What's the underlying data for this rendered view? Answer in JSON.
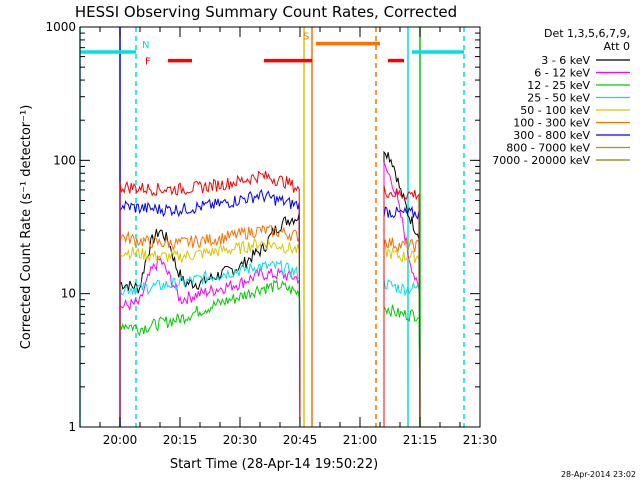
{
  "chart_data": {
    "type": "line",
    "title": "HESSI Observing Summary Count Rates, Corrected",
    "xlabel": "Start Time (28-Apr-14 19:50:22)",
    "ylabel": "Corrected Count Rate (s⁻¹ detector⁻¹)",
    "x_scale": "time",
    "y_scale": "log",
    "xlim": [
      "19:50",
      "21:30"
    ],
    "ylim": [
      1,
      1000
    ],
    "x_ticks": [
      "20:00",
      "20:15",
      "20:30",
      "20:45",
      "21:00",
      "21:15",
      "21:30"
    ],
    "y_ticks": [
      {
        "value": 1,
        "label": "1"
      },
      {
        "value": 10,
        "label": "10"
      },
      {
        "value": 100,
        "label": "100"
      },
      {
        "value": 1000,
        "label": "1000"
      }
    ],
    "legend_title": "Det 1,3,5,6,7,9,",
    "legend_subtitle": "Att 0",
    "legend_position": "right",
    "timestamp": "28-Apr-2014 23:02",
    "series": [
      {
        "name": "3 - 6 keV",
        "color": "#000000",
        "segments": [
          [
            [
              "20:00",
              12
            ],
            [
              "20:05",
              11
            ],
            [
              "20:08",
              25
            ],
            [
              "20:10",
              30
            ],
            [
              "20:12",
              25
            ],
            [
              "20:14",
              16
            ],
            [
              "20:16",
              12
            ],
            [
              "20:20",
              12
            ],
            [
              "20:25",
              14
            ],
            [
              "20:30",
              16
            ],
            [
              "20:33",
              19
            ],
            [
              "20:36",
              22
            ],
            [
              "20:38",
              28
            ],
            [
              "20:40",
              33
            ],
            [
              "20:42",
              36
            ],
            [
              "20:45",
              38
            ]
          ],
          [
            [
              "21:06",
              125
            ],
            [
              "21:08",
              100
            ],
            [
              "21:10",
              60
            ],
            [
              "21:12",
              40
            ],
            [
              "21:14",
              30
            ],
            [
              "21:15",
              28
            ]
          ]
        ]
      },
      {
        "name": "6 - 12 keV",
        "color": "#ff00ff",
        "segments": [
          [
            [
              "20:00",
              8
            ],
            [
              "20:05",
              8.5
            ],
            [
              "20:08",
              15
            ],
            [
              "20:10",
              18
            ],
            [
              "20:12",
              14
            ],
            [
              "20:15",
              9
            ],
            [
              "20:20",
              10
            ],
            [
              "20:25",
              11
            ],
            [
              "20:30",
              12
            ],
            [
              "20:35",
              14
            ],
            [
              "20:40",
              14
            ],
            [
              "20:45",
              13
            ]
          ],
          [
            [
              "21:06",
              90
            ],
            [
              "21:08",
              70
            ],
            [
              "21:10",
              40
            ],
            [
              "21:12",
              20
            ],
            [
              "21:14",
              12
            ],
            [
              "21:15",
              10
            ]
          ]
        ]
      },
      {
        "name": "12 - 25 keV",
        "color": "#00cc00",
        "segments": [
          [
            [
              "20:00",
              6
            ],
            [
              "20:05",
              5.5
            ],
            [
              "20:10",
              6
            ],
            [
              "20:15",
              6.5
            ],
            [
              "20:20",
              7.5
            ],
            [
              "20:25",
              8.5
            ],
            [
              "20:30",
              9.5
            ],
            [
              "20:35",
              11
            ],
            [
              "20:40",
              11.5
            ],
            [
              "20:45",
              10
            ]
          ],
          [
            [
              "21:06",
              8
            ],
            [
              "21:08",
              7.5
            ],
            [
              "21:10",
              7
            ],
            [
              "21:12",
              7
            ],
            [
              "21:15",
              7
            ]
          ]
        ]
      },
      {
        "name": "25 - 50 keV",
        "color": "#00e0e0",
        "segments": [
          [
            [
              "20:00",
              11
            ],
            [
              "20:05",
              11
            ],
            [
              "20:10",
              11.5
            ],
            [
              "20:15",
              12
            ],
            [
              "20:20",
              13
            ],
            [
              "20:25",
              14
            ],
            [
              "20:30",
              15
            ],
            [
              "20:35",
              16
            ],
            [
              "20:40",
              16
            ],
            [
              "20:45",
              14
            ]
          ],
          [
            [
              "21:06",
              12
            ],
            [
              "21:08",
              11.5
            ],
            [
              "21:10",
              11
            ],
            [
              "21:12",
              11
            ],
            [
              "21:15",
              11
            ]
          ]
        ]
      },
      {
        "name": "50 - 100 keV",
        "color": "#d8c800",
        "segments": [
          [
            [
              "20:00",
              21
            ],
            [
              "20:05",
              20
            ],
            [
              "20:10",
              19
            ],
            [
              "20:15",
              19
            ],
            [
              "20:20",
              20
            ],
            [
              "20:25",
              21
            ],
            [
              "20:30",
              22
            ],
            [
              "20:35",
              24
            ],
            [
              "20:40",
              23
            ],
            [
              "20:45",
              21
            ]
          ],
          [
            [
              "21:06",
              21
            ],
            [
              "21:08",
              20
            ],
            [
              "21:10",
              19
            ],
            [
              "21:12",
              19
            ],
            [
              "21:15",
              19
            ]
          ]
        ]
      },
      {
        "name": "100 - 300 keV",
        "color": "#ff7000",
        "segments": [
          [
            [
              "20:00",
              27
            ],
            [
              "20:05",
              25
            ],
            [
              "20:10",
              24
            ],
            [
              "20:15",
              24
            ],
            [
              "20:20",
              25
            ],
            [
              "20:25",
              26
            ],
            [
              "20:30",
              28
            ],
            [
              "20:35",
              30
            ],
            [
              "20:40",
              29
            ],
            [
              "20:45",
              27
            ]
          ],
          [
            [
              "21:06",
              25
            ],
            [
              "21:08",
              24
            ],
            [
              "21:10",
              23
            ],
            [
              "21:12",
              23
            ],
            [
              "21:15",
              23
            ]
          ]
        ]
      },
      {
        "name": "300 - 800 keV",
        "color": "#0000ff",
        "segments": [
          [
            [
              "20:00",
              46
            ],
            [
              "20:05",
              44
            ],
            [
              "20:10",
              43
            ],
            [
              "20:15",
              43
            ],
            [
              "20:20",
              45
            ],
            [
              "20:25",
              47
            ],
            [
              "20:30",
              51
            ],
            [
              "20:35",
              55
            ],
            [
              "20:38",
              52
            ],
            [
              "20:42",
              48
            ],
            [
              "20:45",
              46
            ]
          ],
          [
            [
              "21:06",
              42
            ],
            [
              "21:08",
              41
            ],
            [
              "21:10",
              40
            ],
            [
              "21:12",
              40
            ],
            [
              "21:15",
              40
            ]
          ]
        ]
      },
      {
        "name": "800 - 7000 keV",
        "color": "#cc8800",
        "segments": []
      },
      {
        "name": "7000 - 20000 keV",
        "color": "#808000",
        "segments": []
      },
      {
        "name": "",
        "color": "#ff0000",
        "segments": [
          [
            [
              "20:00",
              64
            ],
            [
              "20:05",
              62
            ],
            [
              "20:10",
              61
            ],
            [
              "20:15",
              61
            ],
            [
              "20:20",
              63
            ],
            [
              "20:25",
              66
            ],
            [
              "20:30",
              70
            ],
            [
              "20:35",
              77
            ],
            [
              "20:38",
              74
            ],
            [
              "20:42",
              68
            ],
            [
              "20:45",
              60
            ]
          ],
          [
            [
              "21:06",
              60
            ],
            [
              "21:08",
              57
            ],
            [
              "21:10",
              56
            ],
            [
              "21:12",
              56
            ],
            [
              "21:15",
              56
            ]
          ]
        ]
      }
    ],
    "state_bars": [
      {
        "flag": "N",
        "color": "#00e0e0",
        "y": 650,
        "ranges": [
          [
            "19:50",
            "20:04"
          ],
          [
            "21:13",
            "21:26"
          ]
        ]
      },
      {
        "flag": "F",
        "color": "#ff0000",
        "y": 560,
        "ranges": [
          [
            "20:12",
            "20:18"
          ],
          [
            "20:36",
            "20:48"
          ],
          [
            "21:07",
            "21:11"
          ]
        ]
      },
      {
        "flag": "S",
        "color": "#ff7000",
        "y": 750,
        "ranges": [
          [
            "20:49",
            "21:05"
          ]
        ]
      }
    ],
    "vlines": [
      {
        "time": "20:00",
        "color": "#0000ff",
        "style": "solid"
      },
      {
        "time": "20:04",
        "color": "#00e0e0",
        "style": "dashed"
      },
      {
        "time": "20:46",
        "color": "#d8c800",
        "style": "solid"
      },
      {
        "time": "20:48",
        "color": "#ff7000",
        "style": "solid"
      },
      {
        "time": "21:04",
        "color": "#ff7000",
        "style": "dashed"
      },
      {
        "time": "21:12",
        "color": "#00e0e0",
        "style": "solid"
      },
      {
        "time": "21:15",
        "color": "#00cc00",
        "style": "solid"
      },
      {
        "time": "21:26",
        "color": "#00e0e0",
        "style": "dashed"
      },
      {
        "time": "19:50",
        "color": "#00e0e0",
        "style": "solid"
      }
    ]
  }
}
